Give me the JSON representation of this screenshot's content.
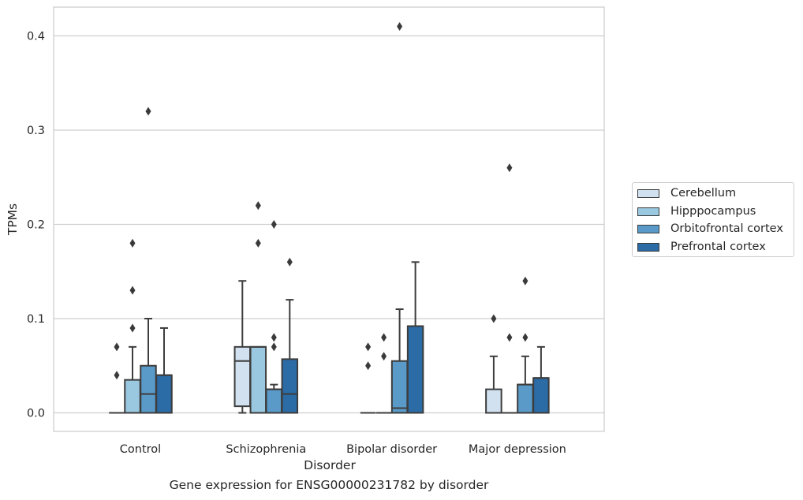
{
  "chart_data": {
    "type": "box",
    "title": "",
    "caption": "Gene expression for ENSG00000231782 by disorder",
    "xlabel": "Disorder",
    "ylabel": "TPMs",
    "ylim": [
      -0.02,
      0.43
    ],
    "yticks": [
      "0.0",
      "0.1",
      "0.2",
      "0.3",
      "0.4"
    ],
    "grid": "horizontal",
    "legend_position": "right",
    "categories": [
      "Control",
      "Schizophrenia",
      "Bipolar disorder",
      "Major depression"
    ],
    "series": [
      {
        "name": "Cerebellum",
        "color": "#d2e1f0",
        "boxes": [
          {
            "whislo": 0,
            "q1": 0,
            "med": 0,
            "q3": 0,
            "whishi": 0,
            "fliers": [
              0.04,
              0.07
            ]
          },
          {
            "whislo": 0,
            "q1": 0.007,
            "med": 0.055,
            "q3": 0.07,
            "whishi": 0.14,
            "fliers": []
          },
          {
            "whislo": 0,
            "q1": 0,
            "med": 0,
            "q3": 0,
            "whishi": 0,
            "fliers": [
              0.05,
              0.07
            ]
          },
          {
            "whislo": 0,
            "q1": 0,
            "med": 0,
            "q3": 0.025,
            "whishi": 0.06,
            "fliers": [
              0.1
            ]
          }
        ]
      },
      {
        "name": "Hipppocampus",
        "color": "#9ac8e0",
        "boxes": [
          {
            "whislo": 0,
            "q1": 0,
            "med": 0,
            "q3": 0.035,
            "whishi": 0.07,
            "fliers": [
              0.09,
              0.13,
              0.18
            ]
          },
          {
            "whislo": 0,
            "q1": 0,
            "med": 0.07,
            "q3": 0.07,
            "whishi": 0.07,
            "fliers": [
              0.18,
              0.22
            ]
          },
          {
            "whislo": 0,
            "q1": 0,
            "med": 0,
            "q3": 0,
            "whishi": 0,
            "fliers": [
              0.06,
              0.08
            ]
          },
          {
            "whislo": 0,
            "q1": 0,
            "med": 0,
            "q3": 0,
            "whishi": 0,
            "fliers": [
              0.08,
              0.26
            ]
          }
        ]
      },
      {
        "name": "Orbitofrontal cortex",
        "color": "#5a9ac8",
        "boxes": [
          {
            "whislo": 0,
            "q1": 0,
            "med": 0.02,
            "q3": 0.05,
            "whishi": 0.1,
            "fliers": [
              0.32
            ]
          },
          {
            "whislo": 0,
            "q1": 0,
            "med": 0.025,
            "q3": 0.025,
            "whishi": 0.03,
            "fliers": [
              0.07,
              0.08,
              0.2
            ]
          },
          {
            "whislo": 0,
            "q1": 0,
            "med": 0.005,
            "q3": 0.055,
            "whishi": 0.11,
            "fliers": [
              0.41
            ]
          },
          {
            "whislo": 0,
            "q1": 0,
            "med": 0.03,
            "q3": 0.03,
            "whishi": 0.06,
            "fliers": [
              0.08,
              0.14
            ]
          }
        ]
      },
      {
        "name": "Prefrontal cortex",
        "color": "#2b6ba6",
        "boxes": [
          {
            "whislo": 0,
            "q1": 0,
            "med": 0.04,
            "q3": 0.04,
            "whishi": 0.09,
            "fliers": []
          },
          {
            "whislo": 0,
            "q1": 0,
            "med": 0.02,
            "q3": 0.057,
            "whishi": 0.12,
            "fliers": [
              0.16
            ]
          },
          {
            "whislo": 0,
            "q1": 0,
            "med": 0.092,
            "q3": 0.092,
            "whishi": 0.16,
            "fliers": []
          },
          {
            "whislo": 0,
            "q1": 0,
            "med": 0.037,
            "q3": 0.037,
            "whishi": 0.07,
            "fliers": []
          }
        ]
      }
    ]
  }
}
